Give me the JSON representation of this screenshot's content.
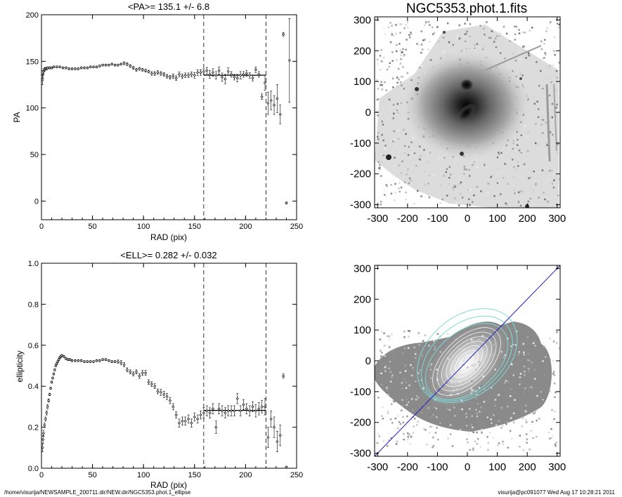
{
  "footer": {
    "path": "/home/visurija/NEWSAMPLE_200711.dir/NEW.dir/NGC5353.phot.1_ellipse",
    "stamp": "visurija@pc091077  Wed Aug 17 10:28:21 2011"
  },
  "colors": {
    "contour": "#7fd8d8",
    "major_axis": "#2020c0",
    "image_gray": "#7a7a7a"
  },
  "chart_data": [
    {
      "type": "scatter",
      "title": "<PA>= 135.1 +/-   6.8",
      "xlabel": "RAD (pix)",
      "ylabel": "PA",
      "xlim": [
        0,
        250
      ],
      "ylim": [
        -20,
        200
      ],
      "xticks": [
        0,
        50,
        100,
        150,
        200,
        250
      ],
      "yticks": [
        0,
        50,
        100,
        150,
        200
      ],
      "vlines": [
        159,
        220
      ],
      "mean_line": {
        "x": [
          159,
          220
        ],
        "y": 135.1
      },
      "points": [
        [
          1,
          130,
          5
        ],
        [
          1.5,
          136,
          4
        ],
        [
          2,
          139,
          3
        ],
        [
          3,
          141,
          2
        ],
        [
          4,
          142,
          1.5
        ],
        [
          5,
          142,
          1
        ],
        [
          6,
          143,
          1
        ],
        [
          8,
          143,
          1
        ],
        [
          10,
          143,
          1
        ],
        [
          12,
          144,
          1
        ],
        [
          15,
          144,
          1
        ],
        [
          18,
          144,
          1
        ],
        [
          21,
          143,
          1
        ],
        [
          24,
          143,
          1
        ],
        [
          27,
          142,
          1
        ],
        [
          30,
          142,
          1
        ],
        [
          33,
          142,
          1
        ],
        [
          36,
          142,
          1
        ],
        [
          39,
          143,
          1
        ],
        [
          42,
          143,
          1
        ],
        [
          45,
          143,
          1
        ],
        [
          48,
          144,
          1
        ],
        [
          51,
          144,
          1
        ],
        [
          54,
          144,
          1
        ],
        [
          57,
          145,
          1
        ],
        [
          60,
          146,
          1
        ],
        [
          63,
          146,
          1
        ],
        [
          66,
          146,
          1
        ],
        [
          69,
          147,
          1
        ],
        [
          72,
          146,
          1
        ],
        [
          75,
          146,
          1
        ],
        [
          78,
          147,
          1
        ],
        [
          81,
          148,
          1.5
        ],
        [
          84,
          147,
          1.5
        ],
        [
          87,
          145,
          1.5
        ],
        [
          90,
          143,
          1.5
        ],
        [
          93,
          141,
          1.5
        ],
        [
          96,
          142,
          1.5
        ],
        [
          99,
          141,
          1.5
        ],
        [
          102,
          140,
          1.5
        ],
        [
          105,
          139,
          1.5
        ],
        [
          108,
          137,
          2
        ],
        [
          111,
          137,
          2
        ],
        [
          114,
          138,
          2
        ],
        [
          117,
          137,
          2
        ],
        [
          120,
          136,
          2
        ],
        [
          123,
          134,
          2
        ],
        [
          126,
          133,
          2
        ],
        [
          129,
          134,
          2.5
        ],
        [
          132,
          132,
          2.5
        ],
        [
          135,
          136,
          2.5
        ],
        [
          138,
          134,
          2.5
        ],
        [
          141,
          135,
          2.5
        ],
        [
          144,
          135,
          2.5
        ],
        [
          147,
          136,
          2.5
        ],
        [
          150,
          135,
          3
        ],
        [
          153,
          138,
          3
        ],
        [
          156,
          138,
          3
        ],
        [
          159,
          139,
          3
        ],
        [
          162,
          140,
          3.5
        ],
        [
          165,
          136,
          4
        ],
        [
          168,
          138,
          4
        ],
        [
          171,
          135,
          4
        ],
        [
          174,
          140,
          4
        ],
        [
          177,
          133,
          4.5
        ],
        [
          180,
          131,
          5
        ],
        [
          183,
          139,
          4
        ],
        [
          186,
          136,
          3
        ],
        [
          189,
          133,
          3
        ],
        [
          192,
          132,
          4
        ],
        [
          195,
          135,
          4
        ],
        [
          198,
          136,
          3
        ],
        [
          201,
          137,
          3
        ],
        [
          204,
          135,
          3
        ],
        [
          207,
          132,
          3
        ],
        [
          210,
          141,
          3
        ],
        [
          213,
          136,
          3
        ],
        [
          216,
          112,
          3
        ],
        [
          219,
          127,
          8
        ],
        [
          222,
          105,
          12
        ],
        [
          225,
          108,
          10
        ],
        [
          228,
          103,
          10
        ],
        [
          231,
          110,
          15
        ],
        [
          234,
          93,
          10
        ],
        [
          237,
          179,
          2
        ],
        [
          240,
          -2,
          1
        ],
        [
          243,
          151,
          45
        ]
      ]
    },
    {
      "type": "scatter",
      "title": "<ELL>= 0.282 +/-  0.032",
      "xlabel": "RAD (pix)",
      "ylabel": "ellipticity",
      "xlim": [
        0,
        250
      ],
      "ylim": [
        0,
        1
      ],
      "xticks": [
        0,
        50,
        100,
        150,
        200,
        250
      ],
      "yticks": [
        0.0,
        0.2,
        0.4,
        0.6,
        0.8,
        1.0
      ],
      "ytick_labels": [
        "0.0",
        "0.2",
        "0.4",
        "0.6",
        "0.8",
        "1.0"
      ],
      "vlines": [
        159,
        220
      ],
      "mean_line": {
        "x": [
          159,
          220
        ],
        "y": 0.282
      },
      "points": [
        [
          1,
          0.1,
          0.02
        ],
        [
          1.5,
          0.14,
          0.02
        ],
        [
          2,
          0.17,
          0.015
        ],
        [
          3,
          0.21,
          0.01
        ],
        [
          4,
          0.24,
          0.01
        ],
        [
          5,
          0.27,
          0.01
        ],
        [
          6,
          0.3,
          0.01
        ],
        [
          7,
          0.33,
          0.008
        ],
        [
          8,
          0.36,
          0.006
        ],
        [
          9,
          0.39,
          0.005
        ],
        [
          10,
          0.42,
          0.005
        ],
        [
          11,
          0.44,
          0.005
        ],
        [
          12,
          0.46,
          0.005
        ],
        [
          13,
          0.48,
          0.005
        ],
        [
          14,
          0.5,
          0.005
        ],
        [
          15,
          0.51,
          0.005
        ],
        [
          16,
          0.52,
          0.005
        ],
        [
          17,
          0.53,
          0.005
        ],
        [
          18,
          0.54,
          0.005
        ],
        [
          19,
          0.545,
          0.005
        ],
        [
          20,
          0.55,
          0.005
        ],
        [
          22,
          0.545,
          0.005
        ],
        [
          24,
          0.535,
          0.005
        ],
        [
          26,
          0.53,
          0.005
        ],
        [
          28,
          0.53,
          0.005
        ],
        [
          30,
          0.525,
          0.005
        ],
        [
          33,
          0.525,
          0.005
        ],
        [
          36,
          0.525,
          0.005
        ],
        [
          39,
          0.525,
          0.005
        ],
        [
          42,
          0.52,
          0.005
        ],
        [
          45,
          0.52,
          0.005
        ],
        [
          48,
          0.52,
          0.005
        ],
        [
          51,
          0.52,
          0.005
        ],
        [
          54,
          0.525,
          0.005
        ],
        [
          57,
          0.525,
          0.005
        ],
        [
          60,
          0.53,
          0.005
        ],
        [
          63,
          0.53,
          0.005
        ],
        [
          66,
          0.525,
          0.005
        ],
        [
          69,
          0.52,
          0.005
        ],
        [
          72,
          0.52,
          0.005
        ],
        [
          75,
          0.52,
          0.008
        ],
        [
          78,
          0.515,
          0.01
        ],
        [
          81,
          0.505,
          0.01
        ],
        [
          84,
          0.48,
          0.01
        ],
        [
          87,
          0.47,
          0.01
        ],
        [
          90,
          0.46,
          0.01
        ],
        [
          93,
          0.47,
          0.01
        ],
        [
          96,
          0.45,
          0.012
        ],
        [
          99,
          0.465,
          0.012
        ],
        [
          102,
          0.465,
          0.012
        ],
        [
          105,
          0.42,
          0.012
        ],
        [
          108,
          0.41,
          0.012
        ],
        [
          111,
          0.4,
          0.012
        ],
        [
          114,
          0.375,
          0.012
        ],
        [
          117,
          0.37,
          0.015
        ],
        [
          120,
          0.36,
          0.015
        ],
        [
          123,
          0.35,
          0.015
        ],
        [
          126,
          0.33,
          0.015
        ],
        [
          129,
          0.3,
          0.015
        ],
        [
          132,
          0.26,
          0.015
        ],
        [
          135,
          0.22,
          0.02
        ],
        [
          138,
          0.23,
          0.02
        ],
        [
          141,
          0.23,
          0.02
        ],
        [
          144,
          0.24,
          0.02
        ],
        [
          147,
          0.22,
          0.02
        ],
        [
          150,
          0.25,
          0.02
        ],
        [
          153,
          0.24,
          0.02
        ],
        [
          156,
          0.26,
          0.02
        ],
        [
          159,
          0.27,
          0.025
        ],
        [
          162,
          0.28,
          0.025
        ],
        [
          165,
          0.27,
          0.025
        ],
        [
          168,
          0.29,
          0.025
        ],
        [
          171,
          0.2,
          0.03
        ],
        [
          174,
          0.29,
          0.025
        ],
        [
          177,
          0.28,
          0.025
        ],
        [
          180,
          0.27,
          0.025
        ],
        [
          183,
          0.28,
          0.025
        ],
        [
          186,
          0.28,
          0.025
        ],
        [
          189,
          0.28,
          0.025
        ],
        [
          192,
          0.34,
          0.025
        ],
        [
          195,
          0.28,
          0.025
        ],
        [
          198,
          0.31,
          0.025
        ],
        [
          201,
          0.29,
          0.025
        ],
        [
          204,
          0.28,
          0.025
        ],
        [
          207,
          0.3,
          0.025
        ],
        [
          210,
          0.28,
          0.03
        ],
        [
          213,
          0.29,
          0.03
        ],
        [
          216,
          0.3,
          0.03
        ],
        [
          219,
          0.3,
          0.04
        ],
        [
          222,
          0.15,
          0.05
        ],
        [
          225,
          0.24,
          0.04
        ],
        [
          228,
          0.2,
          0.05
        ],
        [
          231,
          0.13,
          0.05
        ],
        [
          234,
          0.16,
          0.05
        ],
        [
          237,
          0.45,
          0.01
        ],
        [
          240,
          0.005,
          0.005
        ]
      ]
    },
    {
      "type": "heatmap",
      "title": "NGC5353.phot.1.fits",
      "xlim": [
        -310,
        310
      ],
      "ylim": [
        -310,
        310
      ],
      "xticks": [
        -300,
        -200,
        -100,
        0,
        100,
        200,
        300
      ],
      "yticks": [
        -300,
        -200,
        -100,
        0,
        100,
        200,
        300
      ],
      "sources": [
        [
          0,
          95,
          1.0
        ],
        [
          0,
          0,
          1.0
        ]
      ]
    },
    {
      "type": "heatmap",
      "title": "",
      "xlim": [
        -310,
        310
      ],
      "ylim": [
        -310,
        310
      ],
      "xticks": [
        -300,
        -200,
        -100,
        0,
        100,
        200,
        300
      ],
      "yticks": [
        -300,
        -200,
        -100,
        0,
        100,
        200,
        300
      ],
      "major_axis_pa_deg": 45
    }
  ]
}
